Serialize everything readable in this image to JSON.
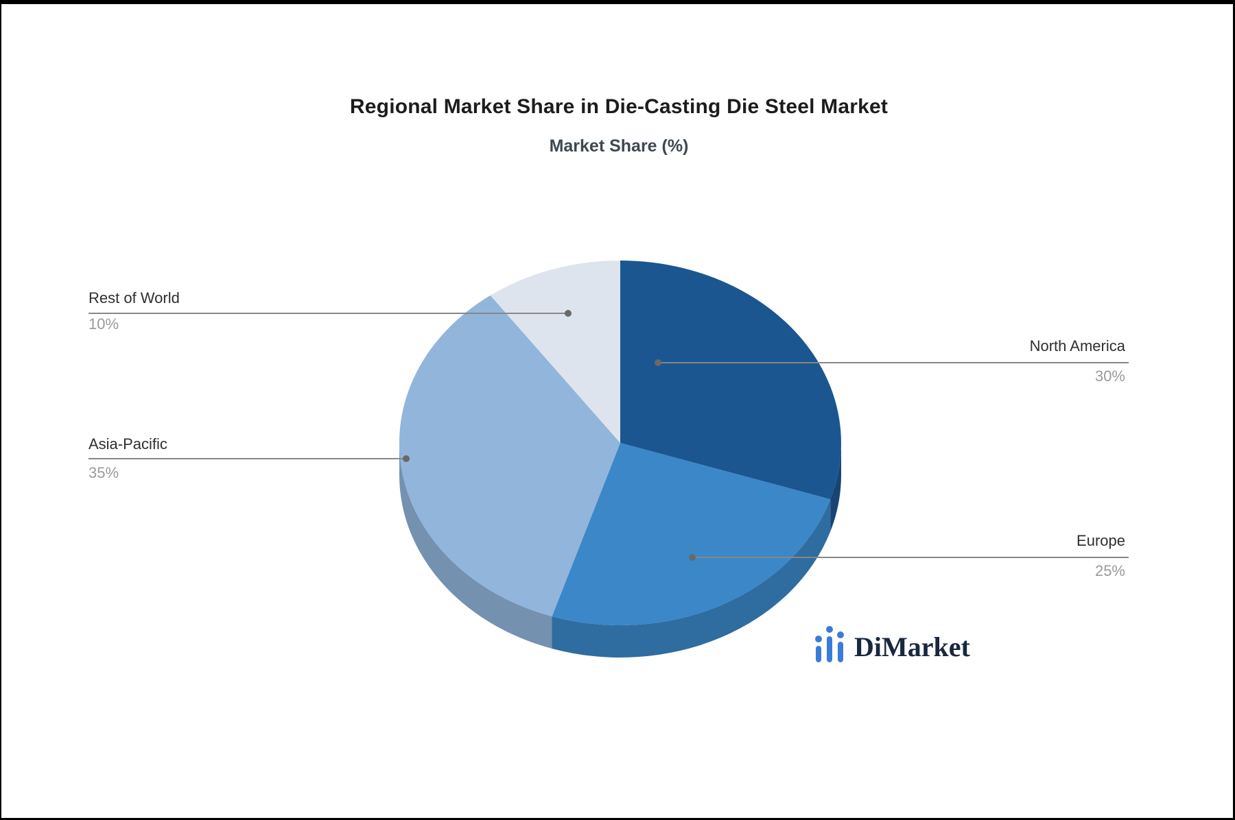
{
  "title": "Regional Market Share in Die-Casting Die Steel Market",
  "subtitle": "Market Share (%)",
  "chart_data": {
    "type": "pie",
    "title": "Regional Market Share in Die-Casting Die Steel Market",
    "subtitle": "Market Share (%)",
    "unit": "%",
    "style": "3d",
    "start_angle_deg": 0,
    "direction": "clockwise",
    "legend_position": "none",
    "labels": "outside-with-leader-lines",
    "slices": [
      {
        "label": "North America",
        "value": 30,
        "display": "30%",
        "color": "#1b5690"
      },
      {
        "label": "Europe",
        "value": 25,
        "display": "25%",
        "color": "#3b87c8"
      },
      {
        "label": "Asia-Pacific",
        "value": 35,
        "display": "35%",
        "color": "#92b5dc"
      },
      {
        "label": "Rest of World",
        "value": 10,
        "display": "10%",
        "color": "#dee4ee"
      }
    ]
  },
  "logo": {
    "text": "DiMarket",
    "icon": "bar-chart-icon",
    "icon_color": "#3a7cd8",
    "text_color": "#19273f"
  },
  "colors": {
    "leader_line": "#878787",
    "leader_dot": "#696969",
    "label_name": "#2f2f2f",
    "label_value": "#9a9a9a"
  }
}
